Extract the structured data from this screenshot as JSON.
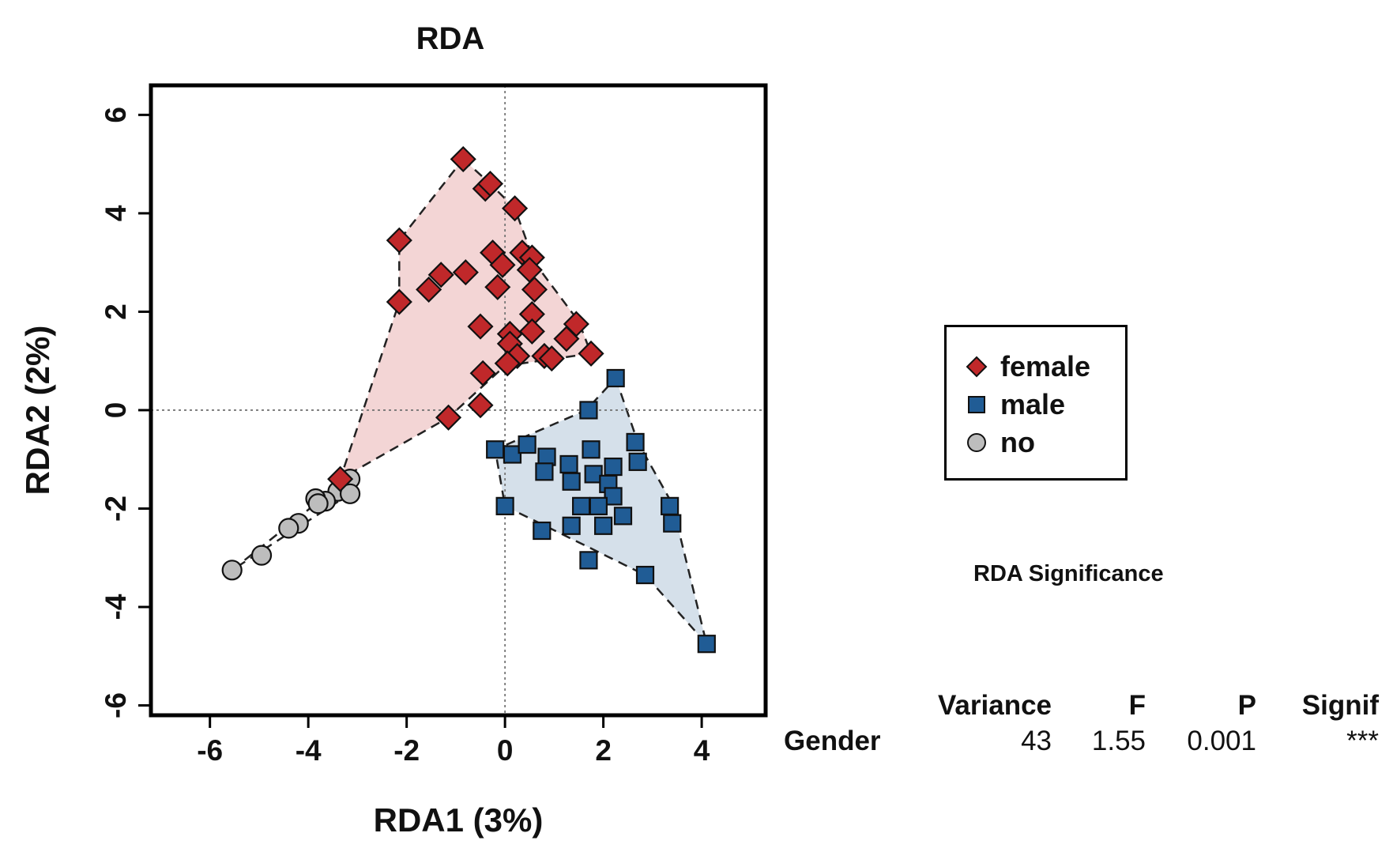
{
  "chart_data": {
    "type": "scatter",
    "title": "RDA",
    "xlabel": "RDA1 (3%)",
    "ylabel": "RDA2 (2%)",
    "xlim": [
      -7.2,
      5.3
    ],
    "ylim": [
      -6.2,
      6.6
    ],
    "x_ticks": [
      -6,
      -4,
      -2,
      0,
      2,
      4
    ],
    "y_ticks": [
      -6,
      -4,
      -2,
      0,
      2,
      4,
      6
    ],
    "reference_lines": {
      "x": 0,
      "y": 0,
      "style": "dotted"
    },
    "legend_position": "right",
    "series": [
      {
        "name": "female",
        "marker": "diamond",
        "color": "#c0282a",
        "hull_fill": "#f3d5d5",
        "hull": [
          [
            -0.85,
            5.1
          ],
          [
            -0.3,
            4.6
          ],
          [
            0.2,
            4.1
          ],
          [
            0.6,
            3.0
          ],
          [
            1.5,
            1.8
          ],
          [
            1.75,
            1.15
          ],
          [
            0.0,
            0.9
          ],
          [
            -1.15,
            -0.15
          ],
          [
            -3.35,
            -1.4
          ],
          [
            -2.15,
            2.2
          ],
          [
            -2.15,
            3.45
          ]
        ],
        "points": [
          [
            -0.85,
            5.1
          ],
          [
            -0.4,
            4.5
          ],
          [
            -0.3,
            4.6
          ],
          [
            0.2,
            4.1
          ],
          [
            -2.15,
            3.45
          ],
          [
            -0.25,
            3.2
          ],
          [
            0.35,
            3.2
          ],
          [
            0.55,
            3.1
          ],
          [
            -0.05,
            2.95
          ],
          [
            0.5,
            2.85
          ],
          [
            -1.3,
            2.75
          ],
          [
            -0.8,
            2.8
          ],
          [
            -1.55,
            2.45
          ],
          [
            -0.15,
            2.5
          ],
          [
            0.6,
            2.45
          ],
          [
            -2.15,
            2.2
          ],
          [
            0.55,
            1.95
          ],
          [
            1.45,
            1.75
          ],
          [
            -0.5,
            1.7
          ],
          [
            0.55,
            1.6
          ],
          [
            0.1,
            1.55
          ],
          [
            1.25,
            1.45
          ],
          [
            0.1,
            1.35
          ],
          [
            1.75,
            1.15
          ],
          [
            0.8,
            1.1
          ],
          [
            0.95,
            1.05
          ],
          [
            0.25,
            1.1
          ],
          [
            0.05,
            0.95
          ],
          [
            -0.45,
            0.75
          ],
          [
            -0.5,
            0.1
          ],
          [
            -1.15,
            -0.15
          ],
          [
            -3.35,
            -1.4
          ]
        ]
      },
      {
        "name": "male",
        "marker": "square",
        "color": "#205c95",
        "hull_fill": "#d5e0ea",
        "hull": [
          [
            2.25,
            0.65
          ],
          [
            2.7,
            -0.65
          ],
          [
            3.4,
            -1.9
          ],
          [
            4.1,
            -4.75
          ],
          [
            2.85,
            -3.35
          ],
          [
            0.0,
            -1.95
          ],
          [
            -0.2,
            -0.8
          ],
          [
            1.65,
            0.0
          ]
        ],
        "points": [
          [
            2.25,
            0.65
          ],
          [
            1.7,
            0.0
          ],
          [
            -0.2,
            -0.8
          ],
          [
            0.15,
            -0.9
          ],
          [
            0.45,
            -0.7
          ],
          [
            0.85,
            -0.95
          ],
          [
            1.75,
            -0.8
          ],
          [
            2.65,
            -0.65
          ],
          [
            2.7,
            -1.05
          ],
          [
            1.3,
            -1.1
          ],
          [
            2.2,
            -1.15
          ],
          [
            0.8,
            -1.25
          ],
          [
            1.8,
            -1.3
          ],
          [
            1.35,
            -1.45
          ],
          [
            2.1,
            -1.5
          ],
          [
            2.2,
            -1.75
          ],
          [
            3.35,
            -1.95
          ],
          [
            1.55,
            -1.95
          ],
          [
            1.9,
            -1.95
          ],
          [
            0.0,
            -1.95
          ],
          [
            2.4,
            -2.15
          ],
          [
            3.4,
            -2.3
          ],
          [
            1.35,
            -2.35
          ],
          [
            2.0,
            -2.35
          ],
          [
            0.75,
            -2.45
          ],
          [
            1.7,
            -3.05
          ],
          [
            2.85,
            -3.35
          ],
          [
            4.1,
            -4.75
          ]
        ]
      },
      {
        "name": "no",
        "marker": "circle",
        "color": "#bdbdbd",
        "hull": [
          [
            -3.15,
            -1.35
          ],
          [
            -3.15,
            -1.7
          ],
          [
            -5.55,
            -3.25
          ]
        ],
        "points": [
          [
            -3.15,
            -1.4
          ],
          [
            -3.4,
            -1.65
          ],
          [
            -3.15,
            -1.7
          ],
          [
            -3.65,
            -1.85
          ],
          [
            -3.85,
            -1.8
          ],
          [
            -3.8,
            -1.9
          ],
          [
            -4.2,
            -2.3
          ],
          [
            -4.4,
            -2.4
          ],
          [
            -4.95,
            -2.95
          ],
          [
            -5.55,
            -3.25
          ]
        ]
      }
    ]
  },
  "significance": {
    "title": "RDA Significance",
    "columns": [
      "Variance",
      "F",
      "P",
      "Signif"
    ],
    "rows": [
      {
        "label": "Gender",
        "variance": "43",
        "f": "1.55",
        "p": "0.001",
        "signif": "***"
      }
    ]
  },
  "legend": {
    "items": [
      {
        "label": "female"
      },
      {
        "label": "male"
      },
      {
        "label": "no"
      }
    ]
  }
}
